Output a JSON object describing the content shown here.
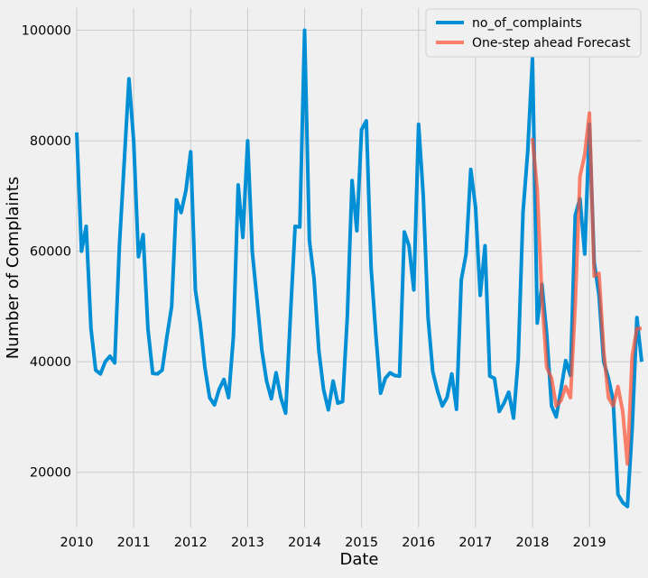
{
  "chart_data": {
    "type": "line",
    "xlabel": "Date",
    "ylabel": "Number of Complaints",
    "xlim": [
      "2010-01-01",
      "2019-12-01"
    ],
    "ylim": [
      10000,
      104000
    ],
    "x_ticks": [
      "2010",
      "2011",
      "2012",
      "2013",
      "2014",
      "2015",
      "2016",
      "2017",
      "2018",
      "2019"
    ],
    "y_ticks": [
      20000,
      40000,
      60000,
      80000,
      100000
    ],
    "y_tick_labels": [
      "20000",
      "40000",
      "60000",
      "80000",
      "100000"
    ],
    "grid": true,
    "legend_position": "top-right",
    "series": [
      {
        "name": "no_of_complaints",
        "color": "#008fd5",
        "x": [
          "2010-01",
          "2010-02",
          "2010-03",
          "2010-04",
          "2010-05",
          "2010-06",
          "2010-07",
          "2010-08",
          "2010-09",
          "2010-10",
          "2010-11",
          "2010-12",
          "2011-01",
          "2011-02",
          "2011-03",
          "2011-04",
          "2011-05",
          "2011-06",
          "2011-07",
          "2011-08",
          "2011-09",
          "2011-10",
          "2011-11",
          "2011-12",
          "2012-01",
          "2012-02",
          "2012-03",
          "2012-04",
          "2012-05",
          "2012-06",
          "2012-07",
          "2012-08",
          "2012-09",
          "2012-10",
          "2012-11",
          "2012-12",
          "2013-01",
          "2013-02",
          "2013-03",
          "2013-04",
          "2013-05",
          "2013-06",
          "2013-07",
          "2013-08",
          "2013-09",
          "2013-10",
          "2013-11",
          "2013-12",
          "2014-01",
          "2014-02",
          "2014-03",
          "2014-04",
          "2014-05",
          "2014-06",
          "2014-07",
          "2014-08",
          "2014-09",
          "2014-10",
          "2014-11",
          "2014-12",
          "2015-01",
          "2015-02",
          "2015-03",
          "2015-04",
          "2015-05",
          "2015-06",
          "2015-07",
          "2015-08",
          "2015-09",
          "2015-10",
          "2015-11",
          "2015-12",
          "2016-01",
          "2016-02",
          "2016-03",
          "2016-04",
          "2016-05",
          "2016-06",
          "2016-07",
          "2016-08",
          "2016-09",
          "2016-10",
          "2016-11",
          "2016-12",
          "2017-01",
          "2017-02",
          "2017-03",
          "2017-04",
          "2017-05",
          "2017-06",
          "2017-07",
          "2017-08",
          "2017-09",
          "2017-10",
          "2017-11",
          "2017-12",
          "2018-01",
          "2018-02",
          "2018-03",
          "2018-04",
          "2018-05",
          "2018-06",
          "2018-07",
          "2018-08",
          "2018-09",
          "2018-10",
          "2018-11",
          "2018-12",
          "2019-01",
          "2019-02",
          "2019-03",
          "2019-04",
          "2019-05",
          "2019-06",
          "2019-07",
          "2019-08",
          "2019-09",
          "2019-10",
          "2019-11",
          "2019-12"
        ],
        "values": [
          81500,
          60000,
          64500,
          46000,
          38500,
          37800,
          40000,
          41000,
          39800,
          61000,
          76000,
          91200,
          80000,
          59000,
          63000,
          46000,
          37900,
          37800,
          38500,
          44500,
          50000,
          69300,
          67000,
          71000,
          78000,
          53000,
          47000,
          39000,
          33500,
          32200,
          35000,
          36800,
          33500,
          44500,
          72000,
          62500,
          80000,
          59800,
          51000,
          42000,
          36500,
          33300,
          38000,
          33500,
          30700,
          48000,
          64500,
          64400,
          100000,
          62000,
          55000,
          42000,
          35000,
          31300,
          36500,
          32500,
          32800,
          48000,
          72800,
          63700,
          82000,
          83600,
          57000,
          45000,
          34300,
          37000,
          38000,
          37500,
          37400,
          63500,
          61000,
          53000,
          83000,
          70000,
          48000,
          38200,
          34700,
          32000,
          33500,
          37800,
          31400,
          54800,
          59500,
          74800,
          68000,
          52000,
          61000,
          37400,
          37000,
          31000,
          32500,
          34500,
          29800,
          40500,
          67000,
          78000,
          95000,
          47000,
          54000,
          45000,
          32000,
          30000,
          35000,
          40200,
          37500,
          66500,
          69500,
          59500,
          83000,
          58000,
          52000,
          40000,
          37000,
          33000,
          16000,
          14500,
          13800,
          28000,
          48000,
          40000
        ]
      },
      {
        "name": "One-step ahead Forecast",
        "color": "#fc4f30",
        "x": [
          "2018-01",
          "2018-02",
          "2018-03",
          "2018-04",
          "2018-05",
          "2018-06",
          "2018-07",
          "2018-08",
          "2018-09",
          "2018-10",
          "2018-11",
          "2018-12",
          "2019-01",
          "2019-02",
          "2019-03",
          "2019-04",
          "2019-05",
          "2019-06",
          "2019-07",
          "2019-08",
          "2019-09",
          "2019-10",
          "2019-11",
          "2019-12"
        ],
        "values": [
          80500,
          71000,
          51500,
          39000,
          37000,
          32000,
          33000,
          35500,
          33500,
          50500,
          73500,
          77500,
          85000,
          55500,
          56000,
          42000,
          33500,
          32000,
          35500,
          31000,
          21500,
          41000,
          46000,
          46000
        ]
      }
    ]
  }
}
